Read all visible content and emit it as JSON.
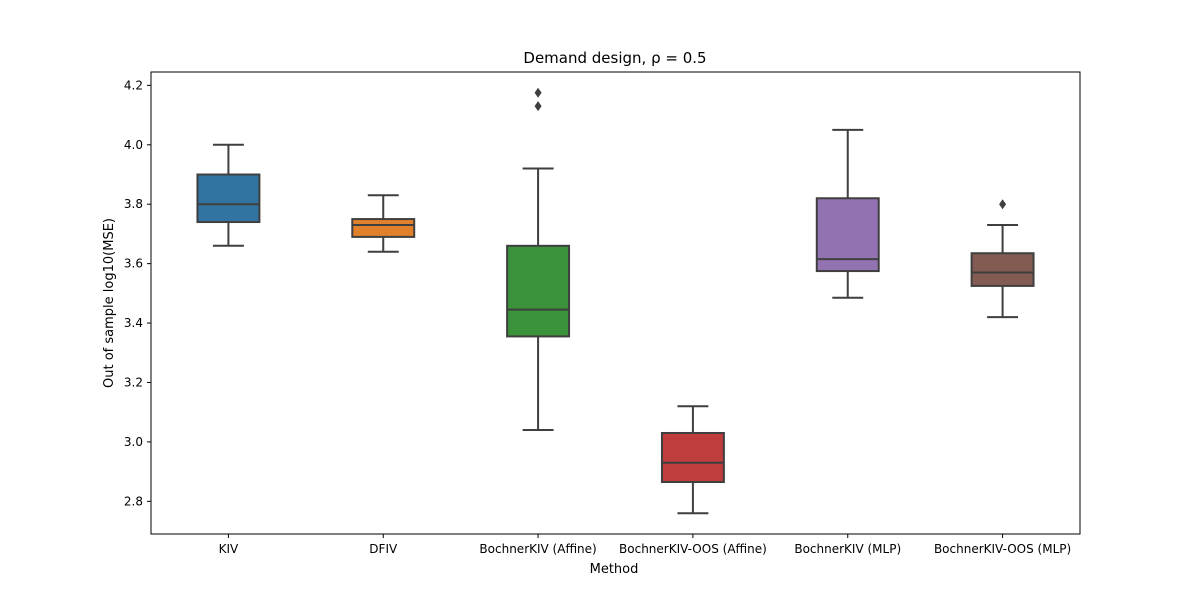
{
  "chart_data": {
    "type": "box",
    "title": "Demand design, ρ = 0.5",
    "xlabel": "Method",
    "ylabel": "Out of sample log10(MSE)",
    "ylim": [
      2.69,
      4.245
    ],
    "yticks": [
      "2.8",
      "3.0",
      "3.2",
      "3.4",
      "3.6",
      "3.8",
      "4.0",
      "4.2"
    ],
    "grid": false,
    "legend": "none",
    "categories": [
      "KIV",
      "DFIV",
      "BochnerKIV (Affine)",
      "BochnerKIV-OOS (Affine)",
      "BochnerKIV (MLP)",
      "BochnerKIV-OOS (MLP)"
    ],
    "series": [
      {
        "category": "KIV",
        "whisker_low": 3.66,
        "q1": 3.74,
        "median": 3.8,
        "q3": 3.9,
        "whisker_high": 4.0,
        "outliers": [],
        "color": "#3274a1"
      },
      {
        "category": "DFIV",
        "whisker_low": 3.64,
        "q1": 3.69,
        "median": 3.73,
        "q3": 3.75,
        "whisker_high": 3.83,
        "outliers": [],
        "color": "#e1812c"
      },
      {
        "category": "BochnerKIV (Affine)",
        "whisker_low": 3.04,
        "q1": 3.355,
        "median": 3.445,
        "q3": 3.66,
        "whisker_high": 3.92,
        "outliers": [
          4.13,
          4.175
        ],
        "color": "#3a923a"
      },
      {
        "category": "BochnerKIV-OOS (Affine)",
        "whisker_low": 2.76,
        "q1": 2.865,
        "median": 2.93,
        "q3": 3.03,
        "whisker_high": 3.12,
        "outliers": [],
        "color": "#c03d3e"
      },
      {
        "category": "BochnerKIV (MLP)",
        "whisker_low": 3.485,
        "q1": 3.575,
        "median": 3.615,
        "q3": 3.82,
        "whisker_high": 4.05,
        "outliers": [],
        "color": "#9372b2"
      },
      {
        "category": "BochnerKIV-OOS (MLP)",
        "whisker_low": 3.42,
        "q1": 3.525,
        "median": 3.57,
        "q3": 3.635,
        "whisker_high": 3.73,
        "outliers": [
          3.8
        ],
        "color": "#845b53"
      }
    ]
  }
}
